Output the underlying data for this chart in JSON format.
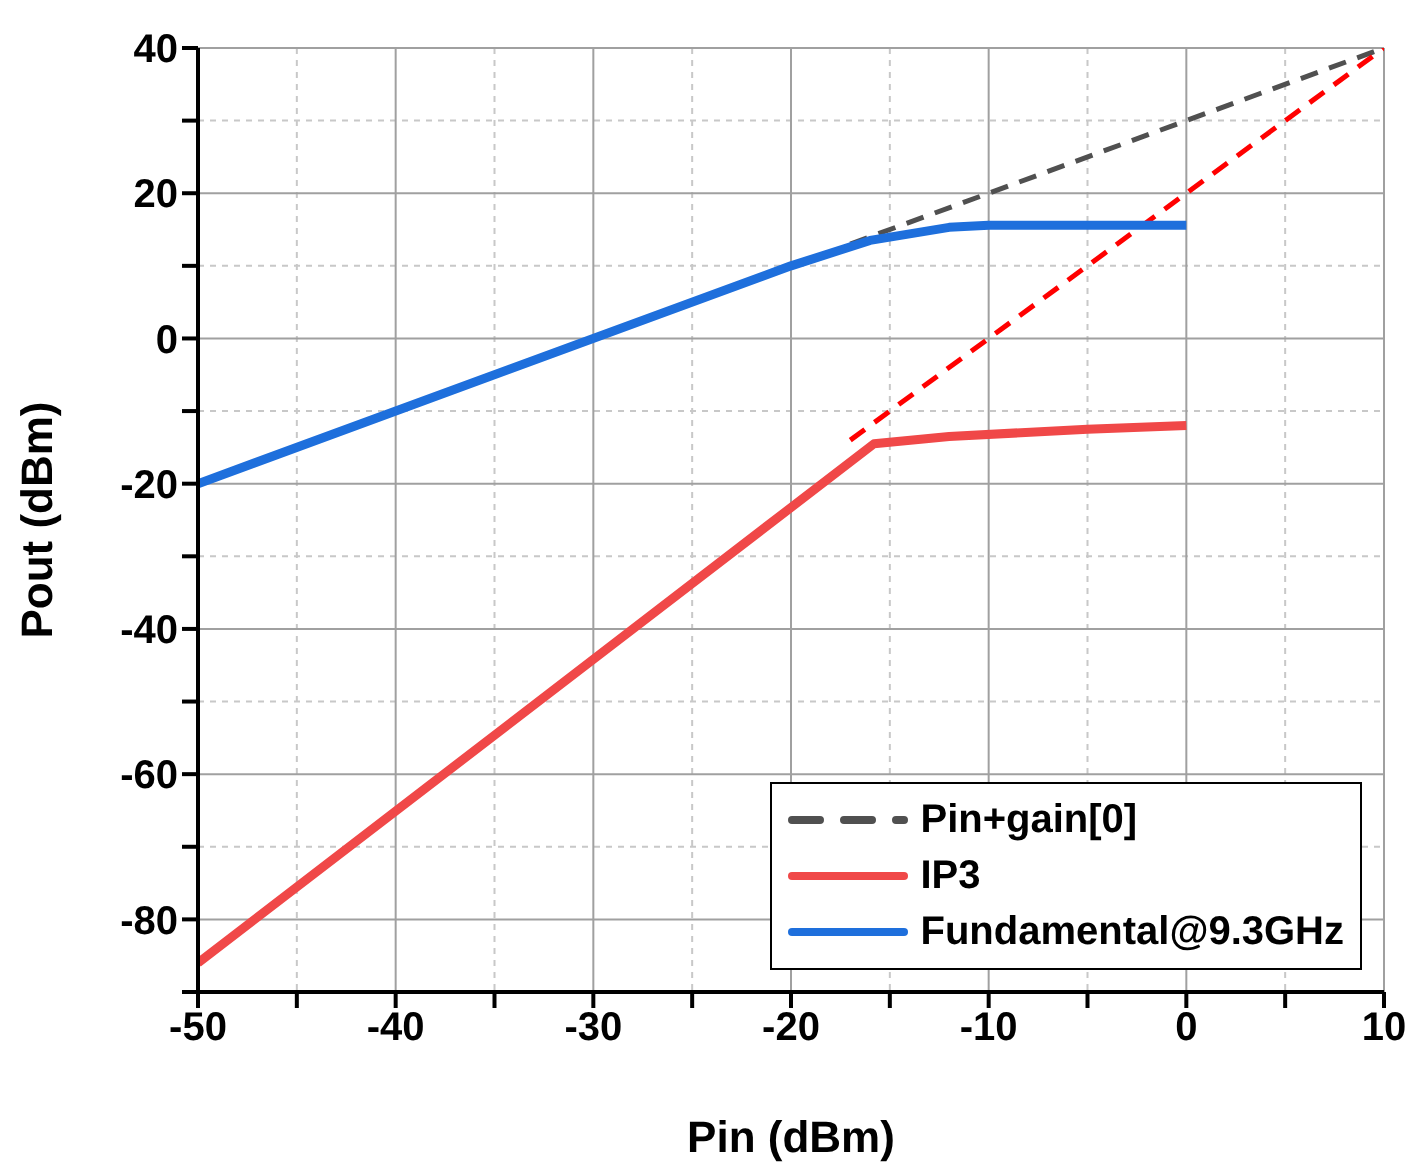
{
  "chart_data": {
    "type": "line",
    "xlabel": "Pin (dBm)",
    "ylabel": "Pout (dBm)",
    "xlim": [
      -50,
      10
    ],
    "ylim": [
      -90,
      40
    ],
    "xticks": [
      -50,
      {
        "value": -45,
        "label": null
      },
      -40,
      {
        "value": -35,
        "label": null
      },
      -30,
      {
        "value": -25,
        "label": null
      },
      -20,
      {
        "value": -15,
        "label": null
      },
      -10,
      {
        "value": -5,
        "label": null
      },
      0,
      {
        "value": 5,
        "label": null
      },
      10
    ],
    "yticks": [
      {
        "value": -90,
        "label": null
      },
      -80,
      {
        "value": -70,
        "label": null
      },
      -60,
      {
        "value": -50,
        "label": null
      },
      -40,
      {
        "value": -30,
        "label": null
      },
      -20,
      {
        "value": -10,
        "label": null
      },
      0,
      {
        "value": 10,
        "label": null
      },
      20,
      {
        "value": 30,
        "label": null
      },
      40
    ],
    "grid": true,
    "legend": "bottom right",
    "marker": "none",
    "series": [
      {
        "name": "Pin+gain[0]",
        "color": "#505050",
        "line_style": "dashed",
        "x": [
          -17,
          10
        ],
        "values": [
          13,
          40
        ]
      },
      {
        "color": "#ff0000",
        "line_style": "dashed",
        "x": [
          -17,
          10
        ],
        "values": [
          -14,
          40
        ]
      },
      {
        "name": "IP3",
        "color": "#f04848",
        "line_style": "solid",
        "x": [
          -50,
          -15.8,
          -12,
          -5,
          0
        ],
        "values": [
          -86,
          -14.5,
          -13.5,
          -12.5,
          -12
        ]
      },
      {
        "name": "Fundamental@9.3GHz",
        "color": "#1e6fdc",
        "line_style": "solid",
        "x": [
          -50,
          -20,
          -16,
          -12,
          -10,
          0
        ],
        "values": [
          -20,
          10,
          13.5,
          15.3,
          15.6,
          15.6
        ]
      }
    ]
  }
}
